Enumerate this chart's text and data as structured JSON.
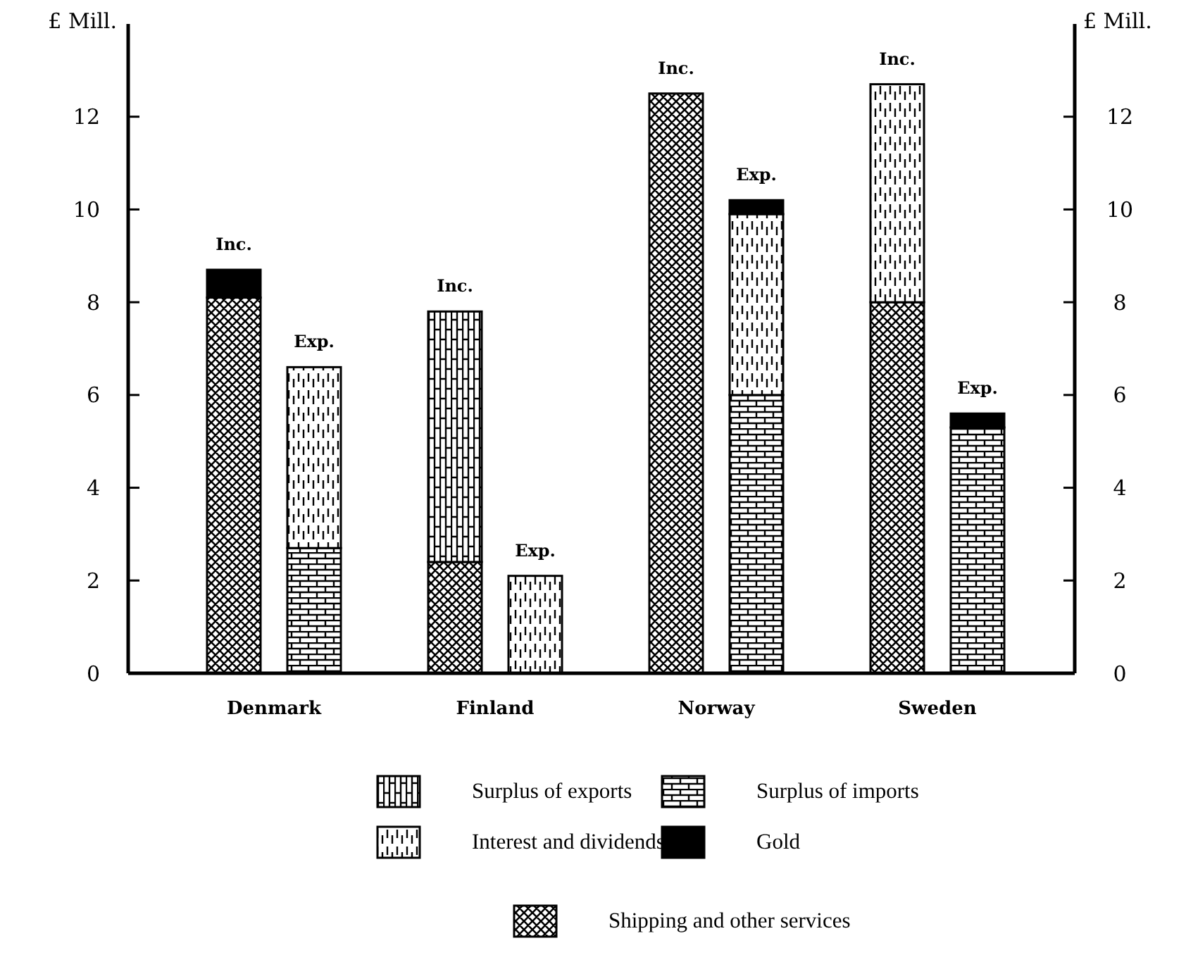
{
  "chart_data": {
    "type": "bar",
    "stacked": true,
    "categories": [
      "Inc.",
      "Exp.",
      "Inc.",
      "Exp.",
      "Inc.",
      "Exp.",
      "Inc.",
      "Exp."
    ],
    "annotations": [
      "Denmark",
      "Finland",
      "Norway",
      "Sweden"
    ],
    "ylabel": "£ Mill.",
    "y2label": "£ Mill.",
    "ylim": [
      0,
      14
    ],
    "yticks": [
      0,
      2,
      4,
      6,
      8,
      10,
      12
    ],
    "y2lim": [
      0,
      14
    ],
    "y2ticks": [
      0,
      2,
      4,
      6,
      8,
      10,
      12
    ],
    "legend": "bottom",
    "grid": false,
    "series": [
      {
        "name": "Shipping and other services",
        "color": "#000000",
        "values": [
          8.1,
          null,
          2.4,
          null,
          12.5,
          null,
          8.0,
          null
        ]
      },
      {
        "name": "Surplus of imports",
        "color": "#000000",
        "values": [
          null,
          2.7,
          null,
          null,
          null,
          6.0,
          null,
          5.3
        ]
      },
      {
        "name": "Surplus of exports",
        "color": "#000000",
        "values": [
          null,
          null,
          5.4,
          null,
          null,
          null,
          null,
          null
        ]
      },
      {
        "name": "Interest and dividends",
        "color": "#000000",
        "values": [
          null,
          3.9,
          null,
          2.1,
          null,
          3.9,
          4.7,
          null
        ]
      },
      {
        "name": "Gold",
        "color": "#000000",
        "values": [
          0.6,
          null,
          null,
          null,
          null,
          0.3,
          null,
          0.3
        ]
      }
    ]
  }
}
